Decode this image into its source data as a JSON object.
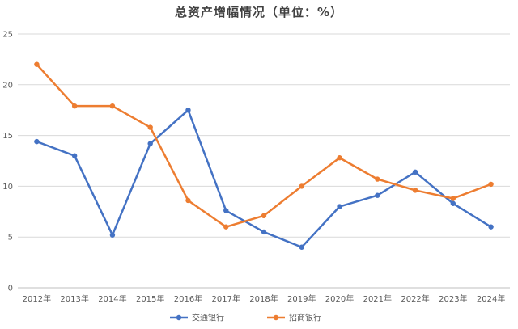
{
  "chart_data": {
    "type": "line",
    "title": "总资产增幅情况（单位：%）",
    "categories": [
      "2012年",
      "2013年",
      "2014年",
      "2015年",
      "2016年",
      "2017年",
      "2018年",
      "2019年",
      "2020年",
      "2021年",
      "2022年",
      "2023年",
      "2024年"
    ],
    "ylim": [
      0,
      25
    ],
    "yticks": [
      0,
      5,
      10,
      15,
      20,
      25
    ],
    "grid": true,
    "legend": "bottom",
    "series": [
      {
        "name": "交通银行",
        "color": "#4472C4",
        "values": [
          14.4,
          13.0,
          5.2,
          14.2,
          17.5,
          7.6,
          5.5,
          4.0,
          8.0,
          9.1,
          11.4,
          8.3,
          6.0
        ]
      },
      {
        "name": "招商银行",
        "color": "#ED7D31",
        "values": [
          22.0,
          17.9,
          17.9,
          15.8,
          8.6,
          6.0,
          7.1,
          10.0,
          12.8,
          10.7,
          9.6,
          8.8,
          10.2
        ]
      }
    ]
  }
}
